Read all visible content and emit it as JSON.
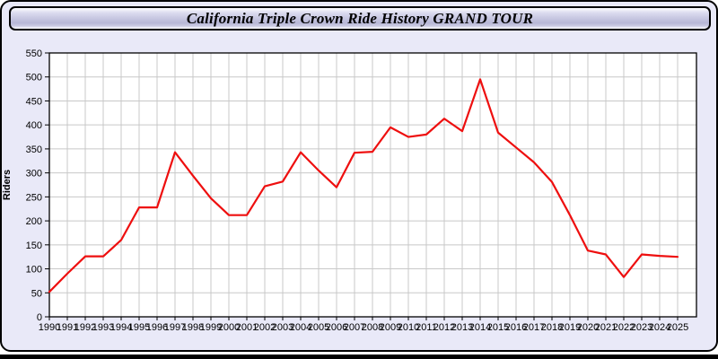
{
  "window": {
    "title": "California Triple Crown Ride History GRAND TOUR"
  },
  "chart_data": {
    "type": "line",
    "title": "California Triple Crown Ride History GRAND TOUR",
    "xlabel": "",
    "ylabel": "Riders",
    "ylim": [
      0,
      550
    ],
    "ytick_step": 50,
    "grid": true,
    "legend": "none",
    "x": [
      1990,
      1991,
      1992,
      1993,
      1994,
      1995,
      1996,
      1997,
      1998,
      1999,
      2000,
      2001,
      2002,
      2003,
      2004,
      2005,
      2006,
      2007,
      2008,
      2009,
      2010,
      2011,
      2012,
      2013,
      2014,
      2015,
      2016,
      2017,
      2018,
      2019,
      2020,
      2021,
      2022,
      2023,
      2024,
      2025
    ],
    "values": [
      52,
      90,
      126,
      126,
      160,
      228,
      228,
      343,
      294,
      247,
      212,
      212,
      272,
      282,
      343,
      305,
      270,
      342,
      344,
      395,
      375,
      380,
      413,
      387,
      495,
      384,
      353,
      322,
      281,
      212,
      138,
      130,
      83,
      130,
      127,
      125
    ],
    "line_color": "#ee0f0f",
    "plot_bg": "#ffffff",
    "grid_color": "#c8c8c8",
    "axis_color": "#000000"
  },
  "colors": {
    "panel_bg": "#e9e9f8",
    "titlebar_top": "#fdfdff",
    "titlebar_mid": "#b6b6d6",
    "frame_border": "#000000",
    "bottom_edge": "#000000",
    "title_text": "#000000"
  }
}
